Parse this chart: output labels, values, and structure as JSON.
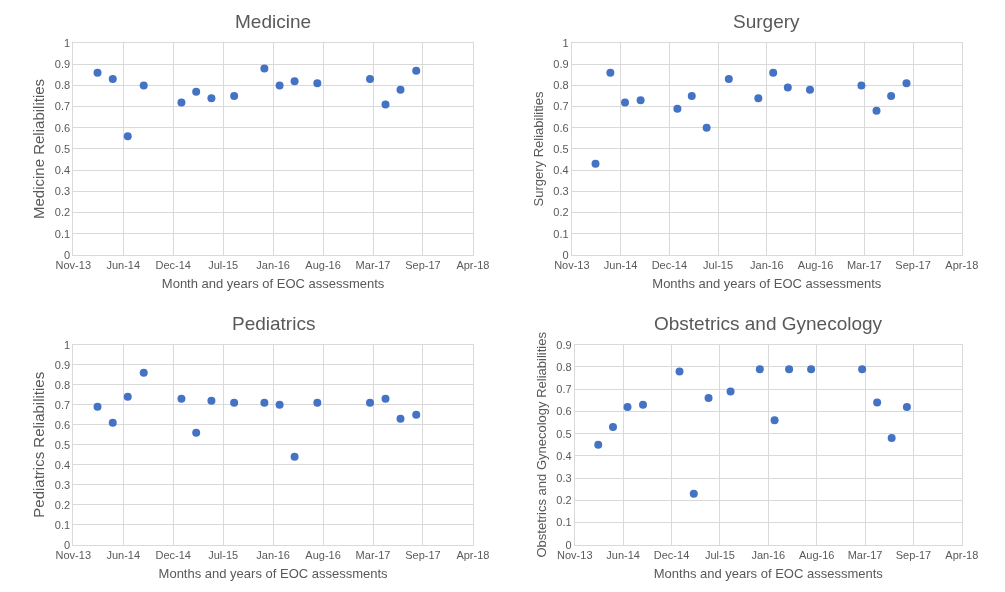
{
  "chart_data": [
    {
      "type": "scatter",
      "title": "Medicine",
      "xlabel": "Month and years of EOC assessments",
      "ylabel": "Medicine Reliabilities",
      "x": [
        "2014-02-25",
        "2014-04-27",
        "2014-06-26",
        "2014-08-29",
        "2015-01-27",
        "2015-03-27",
        "2015-05-27",
        "2015-08-26",
        "2015-12-25",
        "2016-02-24",
        "2016-04-24",
        "2016-07-24",
        "2017-02-20",
        "2017-04-23",
        "2017-06-22",
        "2017-08-24"
      ],
      "series": [
        {
          "color": "#4472c4",
          "values": [
            0.86,
            0.83,
            0.56,
            0.8,
            0.72,
            0.77,
            0.74,
            0.75,
            0.88,
            0.8,
            0.82,
            0.81,
            0.83,
            0.71,
            0.78,
            0.87
          ]
        }
      ],
      "xlim": [
        "2013-11-20",
        "2018-04-08"
      ],
      "xticks": [
        {
          "value": "2013-11-20",
          "label": "Nov-13"
        },
        {
          "value": "2014-06-08",
          "label": "Jun-14"
        },
        {
          "value": "2014-12-25",
          "label": "Dec-14"
        },
        {
          "value": "2015-07-13",
          "label": "Jul-15"
        },
        {
          "value": "2016-01-29",
          "label": "Jan-16"
        },
        {
          "value": "2016-08-16",
          "label": "Aug-16"
        },
        {
          "value": "2017-03-04",
          "label": "Mar-17"
        },
        {
          "value": "2017-09-20",
          "label": "Sep-17"
        },
        {
          "value": "2018-04-08",
          "label": "Apr-18"
        }
      ],
      "ylim": [
        0,
        1
      ],
      "yticks": [
        0,
        0.1,
        0.2,
        0.3,
        0.4,
        0.5,
        0.6,
        0.7,
        0.8,
        0.9,
        1
      ],
      "grid": true,
      "marker": "circle"
    },
    {
      "type": "scatter",
      "title": "Surgery",
      "xlabel": "Months and years of EOC assessments",
      "ylabel": "Surgery Reliabilities",
      "x": [
        "2014-02-25",
        "2014-04-27",
        "2014-06-26",
        "2014-08-29",
        "2015-01-27",
        "2015-03-27",
        "2015-05-27",
        "2015-08-26",
        "2015-12-25",
        "2016-02-24",
        "2016-04-24",
        "2016-07-24",
        "2017-02-20",
        "2017-04-23",
        "2017-06-22",
        "2017-08-24"
      ],
      "series": [
        {
          "color": "#4472c4",
          "values": [
            0.43,
            0.86,
            0.72,
            0.73,
            0.69,
            0.75,
            0.6,
            0.83,
            0.74,
            0.86,
            0.79,
            0.78,
            0.8,
            0.68,
            0.75,
            0.81
          ]
        }
      ],
      "xlim": [
        "2013-11-20",
        "2018-04-08"
      ],
      "xticks": [
        {
          "value": "2013-11-20",
          "label": "Nov-13"
        },
        {
          "value": "2014-06-08",
          "label": "Jun-14"
        },
        {
          "value": "2014-12-25",
          "label": "Dec-14"
        },
        {
          "value": "2015-07-13",
          "label": "Jul-15"
        },
        {
          "value": "2016-01-29",
          "label": "Jan-16"
        },
        {
          "value": "2016-08-16",
          "label": "Aug-16"
        },
        {
          "value": "2017-03-04",
          "label": "Mar-17"
        },
        {
          "value": "2017-09-20",
          "label": "Sep-17"
        },
        {
          "value": "2018-04-08",
          "label": "Apr-18"
        }
      ],
      "ylim": [
        0,
        1
      ],
      "yticks": [
        0,
        0.1,
        0.2,
        0.3,
        0.4,
        0.5,
        0.6,
        0.7,
        0.8,
        0.9,
        1
      ],
      "grid": true,
      "marker": "circle"
    },
    {
      "type": "scatter",
      "title": "Pediatrics",
      "xlabel": "Months and years of EOC assessments",
      "ylabel": "Pediatrics Reliabilities",
      "x": [
        "2014-02-25",
        "2014-04-27",
        "2014-06-26",
        "2014-08-29",
        "2015-01-27",
        "2015-03-27",
        "2015-05-27",
        "2015-08-26",
        "2015-12-25",
        "2016-02-24",
        "2016-04-24",
        "2016-07-24",
        "2017-02-20",
        "2017-04-23",
        "2017-06-22",
        "2017-08-24"
      ],
      "series": [
        {
          "color": "#4472c4",
          "values": [
            0.69,
            0.61,
            0.74,
            0.86,
            0.73,
            0.56,
            0.72,
            0.71,
            0.71,
            0.7,
            0.44,
            0.71,
            0.71,
            0.73,
            0.63,
            0.65
          ]
        }
      ],
      "xlim": [
        "2013-11-20",
        "2018-04-08"
      ],
      "xticks": [
        {
          "value": "2013-11-20",
          "label": "Nov-13"
        },
        {
          "value": "2014-06-08",
          "label": "Jun-14"
        },
        {
          "value": "2014-12-25",
          "label": "Dec-14"
        },
        {
          "value": "2015-07-13",
          "label": "Jul-15"
        },
        {
          "value": "2016-01-29",
          "label": "Jan-16"
        },
        {
          "value": "2016-08-16",
          "label": "Aug-16"
        },
        {
          "value": "2017-03-04",
          "label": "Mar-17"
        },
        {
          "value": "2017-09-20",
          "label": "Sep-17"
        },
        {
          "value": "2018-04-08",
          "label": "Apr-18"
        }
      ],
      "ylim": [
        0,
        1
      ],
      "yticks": [
        0,
        0.1,
        0.2,
        0.3,
        0.4,
        0.5,
        0.6,
        0.7,
        0.8,
        0.9,
        1
      ],
      "grid": true,
      "marker": "circle"
    },
    {
      "type": "scatter",
      "title": "Obstetrics and Gynecology",
      "xlabel": "Months and years of EOC assessments",
      "ylabel": "Obstetrics and Gynecology Reliabilities",
      "x": [
        "2014-02-25",
        "2014-04-27",
        "2014-06-26",
        "2014-08-29",
        "2015-01-27",
        "2015-03-27",
        "2015-05-27",
        "2015-08-26",
        "2015-12-25",
        "2016-02-24",
        "2016-04-24",
        "2016-07-24",
        "2017-02-20",
        "2017-04-23",
        "2017-06-22",
        "2017-08-24"
      ],
      "series": [
        {
          "color": "#4472c4",
          "values": [
            0.45,
            0.53,
            0.62,
            0.63,
            0.78,
            0.23,
            0.66,
            0.69,
            0.79,
            0.56,
            0.79,
            0.79,
            0.79,
            0.64,
            0.48,
            0.62
          ]
        }
      ],
      "xlim": [
        "2013-11-20",
        "2018-04-08"
      ],
      "xticks": [
        {
          "value": "2013-11-20",
          "label": "Nov-13"
        },
        {
          "value": "2014-06-08",
          "label": "Jun-14"
        },
        {
          "value": "2014-12-25",
          "label": "Dec-14"
        },
        {
          "value": "2015-07-13",
          "label": "Jul-15"
        },
        {
          "value": "2016-01-29",
          "label": "Jan-16"
        },
        {
          "value": "2016-08-16",
          "label": "Aug-16"
        },
        {
          "value": "2017-03-04",
          "label": "Mar-17"
        },
        {
          "value": "2017-09-20",
          "label": "Sep-17"
        },
        {
          "value": "2018-04-08",
          "label": "Apr-18"
        }
      ],
      "ylim": [
        0,
        0.9
      ],
      "yticks": [
        0,
        0.1,
        0.2,
        0.3,
        0.4,
        0.5,
        0.6,
        0.7,
        0.8,
        0.9
      ],
      "grid": true,
      "marker": "circle"
    }
  ]
}
